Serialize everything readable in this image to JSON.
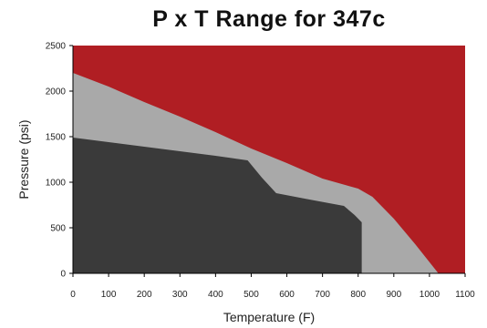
{
  "chart_data": {
    "type": "area",
    "title": "P x T Range for 347c",
    "xlabel": "Temperature (F)",
    "ylabel": "Pressure (psi)",
    "xlim": [
      0,
      1100
    ],
    "ylim": [
      0,
      2500
    ],
    "x_ticks": [
      0,
      100,
      200,
      300,
      400,
      500,
      600,
      700,
      800,
      900,
      1000,
      1100
    ],
    "y_ticks": [
      0,
      500,
      1000,
      1500,
      2000,
      2500
    ],
    "grid": false,
    "regions": [
      {
        "color": "#b01e23",
        "points": [
          [
            0,
            2500
          ],
          [
            1100,
            2500
          ],
          [
            1100,
            0
          ],
          [
            0,
            0
          ]
        ]
      },
      {
        "color": "#a9a9a9",
        "points": [
          [
            0,
            2200
          ],
          [
            100,
            2050
          ],
          [
            200,
            1880
          ],
          [
            300,
            1720
          ],
          [
            400,
            1550
          ],
          [
            500,
            1370
          ],
          [
            600,
            1210
          ],
          [
            700,
            1040
          ],
          [
            800,
            930
          ],
          [
            840,
            840
          ],
          [
            900,
            600
          ],
          [
            960,
            320
          ],
          [
            1025,
            0
          ],
          [
            0,
            0
          ]
        ]
      },
      {
        "color": "#3a3a3a",
        "points": [
          [
            0,
            1490
          ],
          [
            100,
            1440
          ],
          [
            200,
            1390
          ],
          [
            300,
            1340
          ],
          [
            400,
            1290
          ],
          [
            490,
            1240
          ],
          [
            530,
            1050
          ],
          [
            570,
            880
          ],
          [
            650,
            820
          ],
          [
            760,
            740
          ],
          [
            790,
            640
          ],
          [
            810,
            560
          ],
          [
            810,
            0
          ],
          [
            0,
            0
          ]
        ]
      }
    ]
  }
}
